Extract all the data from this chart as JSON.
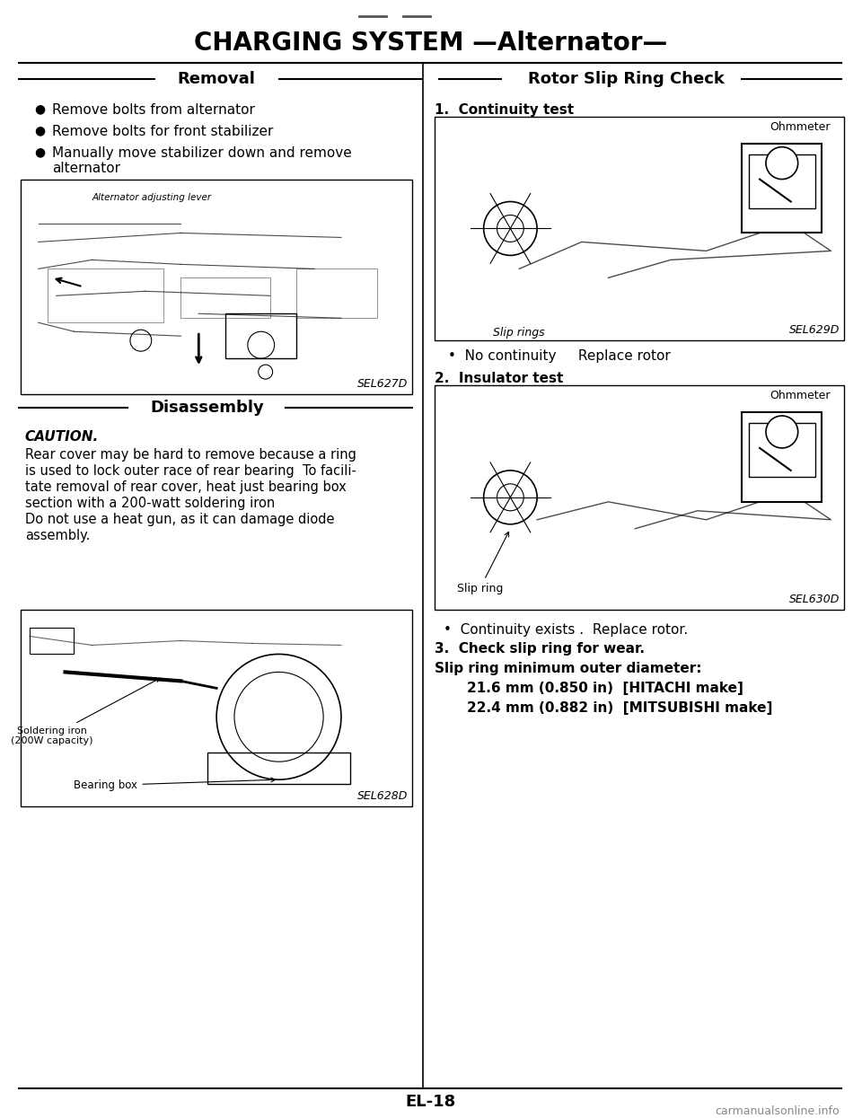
{
  "title": "CHARGING SYSTEM —Alternator—",
  "section_left": "Removal",
  "section_right": "Rotor Slip Ring Check",
  "removal_bullets": [
    "Remove bolts from alternator",
    "Remove bolts for front stabilizer",
    "Manually move stabilizer down and remove\nalternator"
  ],
  "disassembly_title": "Disassembly",
  "caution_title": "CAUTION.",
  "caution_text": "Rear cover may be hard to remove because a ring\nis used to lock outer race of rear bearing  To facili-\ntate removal of rear cover, heat just bearing box\nsection with a 200-watt soldering iron\nDo not use a heat gun, as it can damage diode\nassembly.",
  "right_items": [
    "1.  Continuity test",
    "•  No continuity     Replace rotor",
    "2.  Insulator test",
    "•  Continuity exists .  Replace rotor.",
    "3.  Check slip ring for wear.",
    "Slip ring minimum outer diameter:",
    "    21.6 mm (0.850 in)  [HITACHI make]",
    "    22.4 mm (0.882 in)  [MITSUBISHI make]"
  ],
  "fig_labels": [
    "SEL627D",
    "SEL628D",
    "SEL629D",
    "SEL630D"
  ],
  "ohmmeter_label1": "Ohmmeter",
  "slip_rings_label": "Slip rings",
  "slip_ring_label": "Slip ring",
  "ohmmeter_label2": "Ohmmeter",
  "alt_adj_lever": "Alternator adjusting lever",
  "soldering_iron": "Soldering iron\n(200W capacity)",
  "bearing_box": "Bearing box",
  "page_number": "EL-18",
  "watermark": "carmanualsonline.info",
  "bg_color": "#ffffff",
  "text_color": "#000000",
  "divider_color": "#000000"
}
